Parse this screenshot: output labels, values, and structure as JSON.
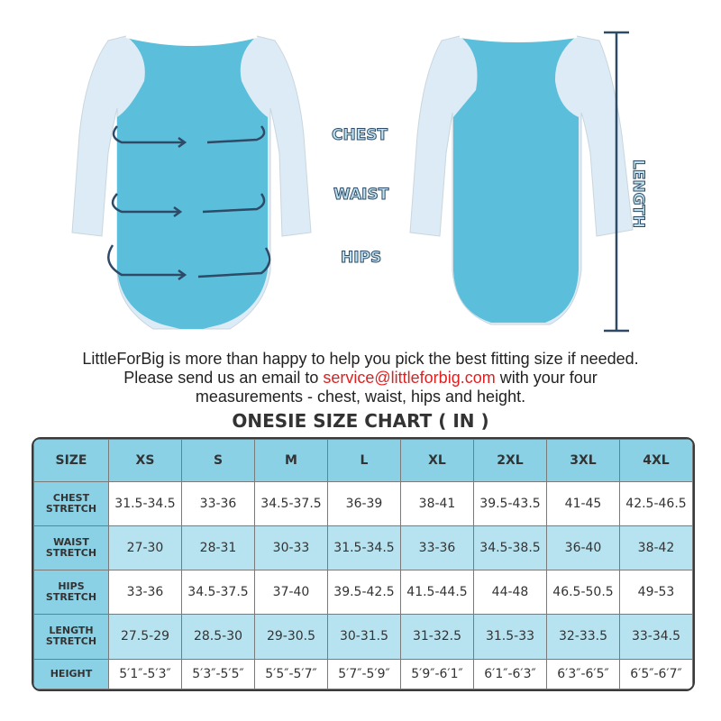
{
  "labels": {
    "chest": "CHEST",
    "waist": "WAIST",
    "hips": "HIPS",
    "length": "LENGTH"
  },
  "intro": {
    "line1": "LittleForBig is more than happy to help you pick the best fitting size if needed.",
    "line2_pre": "Please send us an email to ",
    "email": "service@littleforbig.com",
    "line2_post": " with your four",
    "line3": "measurements - chest, waist, hips and height."
  },
  "title": "ONESIE SIZE CHART ( IN )",
  "colors": {
    "body": "#5bbfdb",
    "sleeve": "#dcebf5",
    "header": "#8ad1e6",
    "alt_row": "#b7e3f0",
    "email": "#e02020",
    "arrow": "#2e4a66"
  },
  "table": {
    "header": [
      "SIZE",
      "XS",
      "S",
      "M",
      "L",
      "XL",
      "2XL",
      "3XL",
      "4XL"
    ],
    "rows": [
      {
        "label1": "CHEST",
        "label2": "STRETCH",
        "values": [
          "31.5-34.5",
          "33-36",
          "34.5-37.5",
          "36-39",
          "38-41",
          "39.5-43.5",
          "41-45",
          "42.5-46.5"
        ]
      },
      {
        "label1": "WAIST",
        "label2": "STRETCH",
        "values": [
          "27-30",
          "28-31",
          "30-33",
          "31.5-34.5",
          "33-36",
          "34.5-38.5",
          "36-40",
          "38-42"
        ]
      },
      {
        "label1": "HIPS",
        "label2": "STRETCH",
        "values": [
          "33-36",
          "34.5-37.5",
          "37-40",
          "39.5-42.5",
          "41.5-44.5",
          "44-48",
          "46.5-50.5",
          "49-53"
        ]
      },
      {
        "label1": "LENGTH",
        "label2": "STRETCH",
        "values": [
          "27.5-29",
          "28.5-30",
          "29-30.5",
          "30-31.5",
          "31-32.5",
          "31.5-33",
          "32-33.5",
          "33-34.5"
        ]
      },
      {
        "label1": "HEIGHT",
        "label2": "",
        "values": [
          "5′1″-5′3″",
          "5′3″-5′5″",
          "5′5″-5′7″",
          "5′7″-5′9″",
          "5′9″-6′1″",
          "6′1″-6′3″",
          "6′3″-6′5″",
          "6′5″-6′7″"
        ]
      }
    ]
  }
}
